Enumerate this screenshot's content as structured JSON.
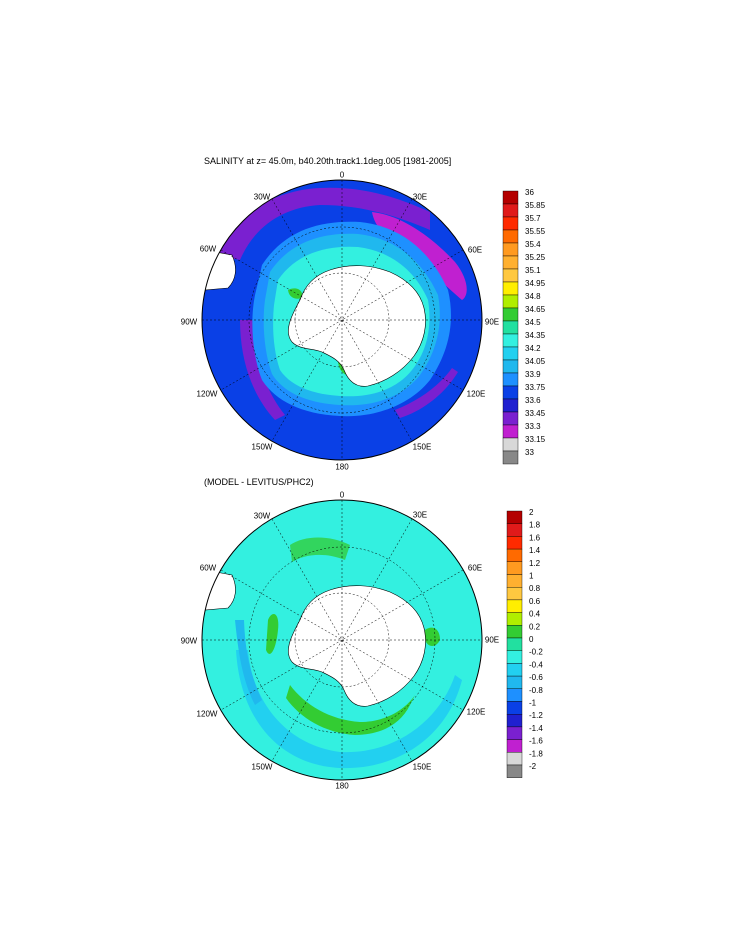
{
  "panels": [
    {
      "title": "SALINITY at z=  45.0m, b40.20th.track1.1deg.005 [1981-2005]",
      "lon_labels": [
        "0",
        "30E",
        "60E",
        "90E",
        "120E",
        "150E",
        "180",
        "150W",
        "120W",
        "90W",
        "60W",
        "30W"
      ],
      "colorbar": {
        "labels": [
          "36",
          "35.85",
          "35.7",
          "35.55",
          "35.4",
          "35.25",
          "35.1",
          "34.95",
          "34.8",
          "34.65",
          "34.5",
          "34.35",
          "34.2",
          "34.05",
          "33.9",
          "33.75",
          "33.6",
          "33.45",
          "33.3",
          "33.15",
          "33"
        ],
        "colors": [
          "#b40000",
          "#e01a1a",
          "#ff2a00",
          "#ff6a00",
          "#ff9a20",
          "#ffb030",
          "#ffc840",
          "#ffee00",
          "#b0ee00",
          "#33cc33",
          "#22e0a0",
          "#33f0e0",
          "#22d0f0",
          "#20b8ee",
          "#1e90ff",
          "#0a40e6",
          "#2020d0",
          "#7a20d0",
          "#c020d0",
          "#d8d8d8",
          "#888888"
        ]
      }
    },
    {
      "title": "(MODEL - LEVITUS/PHC2)",
      "lon_labels": [
        "0",
        "30E",
        "60E",
        "90E",
        "120E",
        "150E",
        "180",
        "150W",
        "120W",
        "90W",
        "60W",
        "30W"
      ],
      "colorbar": {
        "labels": [
          "2",
          "1.8",
          "1.6",
          "1.4",
          "1.2",
          "1",
          "0.8",
          "0.6",
          "0.4",
          "0.2",
          "0",
          "-0.2",
          "-0.4",
          "-0.6",
          "-0.8",
          "-1",
          "-1.2",
          "-1.4",
          "-1.6",
          "-1.8",
          "-2"
        ],
        "colors": [
          "#b40000",
          "#e01a1a",
          "#ff2a00",
          "#ff6a00",
          "#ff9a20",
          "#ffb030",
          "#ffc840",
          "#ffee00",
          "#b0ee00",
          "#33cc33",
          "#22e0a0",
          "#33f0e0",
          "#22d0f0",
          "#20b8ee",
          "#1e90ff",
          "#0a40e6",
          "#2020d0",
          "#7a20d0",
          "#c020d0",
          "#d8d8d8",
          "#888888"
        ]
      }
    }
  ]
}
